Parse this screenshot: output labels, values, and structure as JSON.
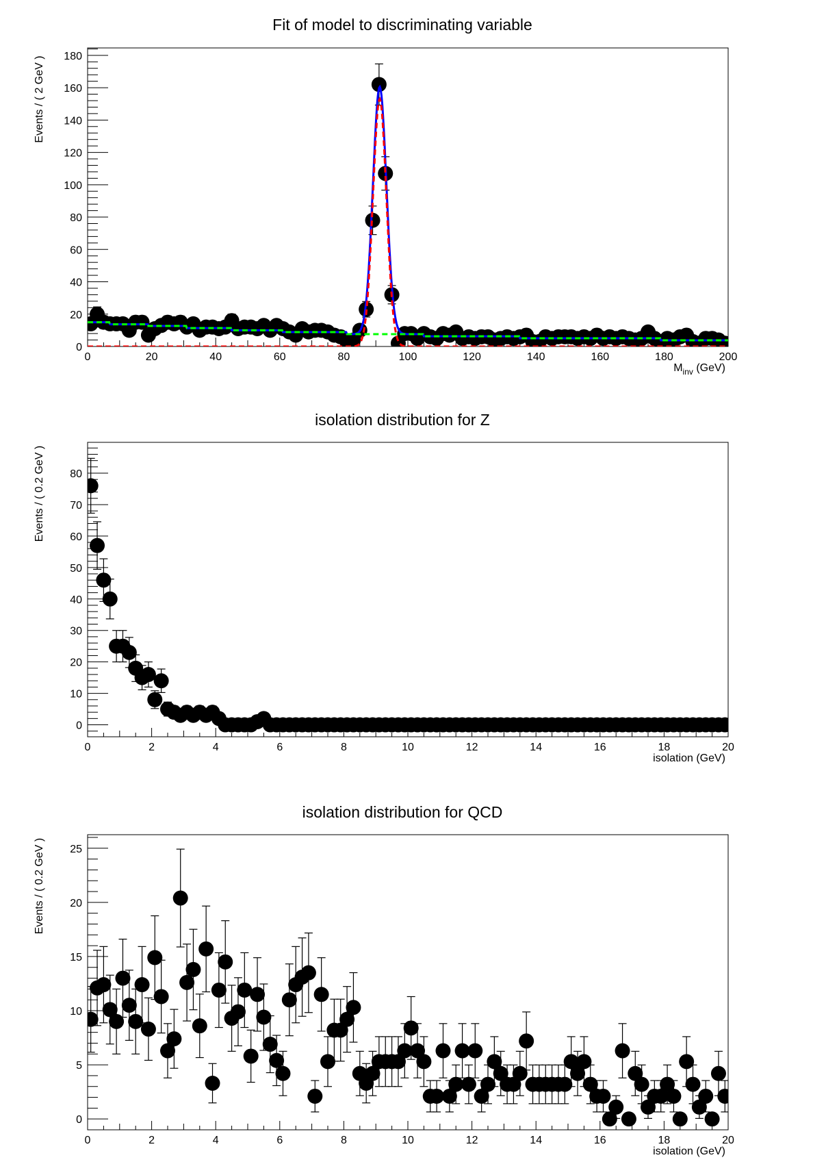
{
  "chart_data": [
    {
      "type": "scatter",
      "title": "Fit of model to discriminating variable",
      "xlabel": "M",
      "xlabel_sub": "inv",
      "xlabel_unit": " (GeV)",
      "ylabel": "Events / ( 2 GeV )",
      "xlim": [
        0,
        200
      ],
      "ylim": [
        0,
        184.6
      ],
      "xticks": [
        0,
        20,
        40,
        60,
        80,
        100,
        120,
        140,
        160,
        180,
        200
      ],
      "yticks": [
        0,
        20,
        40,
        60,
        80,
        100,
        120,
        140,
        160,
        180
      ],
      "grid": false,
      "bin_width": 2,
      "x": [
        1,
        3,
        5,
        7,
        9,
        11,
        13,
        15,
        17,
        19,
        21,
        23,
        25,
        27,
        29,
        31,
        33,
        35,
        37,
        39,
        41,
        43,
        45,
        47,
        49,
        51,
        53,
        55,
        57,
        59,
        61,
        63,
        65,
        67,
        69,
        71,
        73,
        75,
        77,
        79,
        81,
        83,
        85,
        87,
        89,
        91,
        93,
        95,
        97,
        99,
        101,
        103,
        105,
        107,
        109,
        111,
        113,
        115,
        117,
        119,
        121,
        123,
        125,
        127,
        129,
        131,
        133,
        135,
        137,
        139,
        141,
        143,
        145,
        147,
        149,
        151,
        153,
        155,
        157,
        159,
        161,
        163,
        165,
        167,
        169,
        171,
        173,
        175,
        177,
        179,
        181,
        183,
        185,
        187,
        189,
        191,
        193,
        195,
        197,
        199
      ],
      "values": [
        14,
        20,
        15,
        14,
        14,
        14,
        10,
        15,
        15,
        7,
        11,
        13,
        15,
        14,
        15,
        12,
        14,
        10,
        12,
        12,
        11,
        12,
        16,
        11,
        12,
        12,
        11,
        13,
        10,
        13,
        11,
        9,
        7,
        11,
        9,
        10,
        10,
        9,
        7,
        6,
        3,
        4,
        10,
        23,
        78,
        162,
        107,
        32,
        2,
        8,
        8,
        5,
        8,
        6,
        5,
        8,
        7,
        9,
        5,
        6,
        5,
        6,
        6,
        4,
        5,
        6,
        5,
        6,
        7,
        3,
        3,
        6,
        5,
        6,
        6,
        6,
        5,
        6,
        5,
        7,
        5,
        6,
        5,
        6,
        5,
        4,
        5,
        9,
        5,
        3,
        5,
        4,
        6,
        7,
        3,
        2,
        5,
        5,
        4,
        2
      ],
      "model": {
        "total_color": "#0000ff",
        "signal_color": "#ff0000",
        "background_color": "#00ff00",
        "signal": {
          "mean": 91.2,
          "sigma": 2.1,
          "peak": 153
        },
        "background_steps": [
          [
            0,
            15
          ],
          [
            7,
            13.7
          ],
          [
            19,
            12.7
          ],
          [
            31,
            11.4
          ],
          [
            45,
            10
          ],
          [
            61,
            8.9
          ],
          [
            81,
            7.6
          ],
          [
            105,
            6.3
          ],
          [
            135,
            5.1
          ],
          [
            179,
            3.8
          ]
        ]
      }
    },
    {
      "type": "scatter",
      "title": "isolation distribution for Z",
      "xlabel": "isolation (GeV)",
      "ylabel": "Events / ( 0.2 GeV )",
      "xlim": [
        0,
        20
      ],
      "ylim": [
        -3.8,
        89.8
      ],
      "xticks": [
        0,
        2,
        4,
        6,
        8,
        10,
        12,
        14,
        16,
        18,
        20
      ],
      "yticks": [
        0,
        10,
        20,
        30,
        40,
        50,
        60,
        70,
        80
      ],
      "grid": false,
      "bin_width": 0.2,
      "values": [
        76,
        57,
        46,
        40,
        25,
        25,
        23,
        18,
        15,
        16,
        8,
        14,
        5,
        4,
        3,
        4,
        3,
        4,
        3,
        4,
        2,
        0,
        0,
        0,
        0,
        0,
        1,
        2,
        0,
        0,
        0,
        0,
        0,
        0,
        0,
        0,
        0,
        0,
        0,
        0,
        0,
        0,
        0,
        0,
        0,
        0,
        0,
        0,
        0,
        0,
        0,
        0,
        0,
        0,
        0,
        0,
        0,
        0,
        0,
        0,
        0,
        0,
        0,
        0,
        0,
        0,
        0,
        0,
        0,
        0,
        0,
        0,
        0,
        0,
        0,
        0,
        0,
        0,
        0,
        0,
        0,
        0,
        0,
        0,
        0,
        0,
        0,
        0,
        0,
        0,
        0,
        0,
        0,
        0,
        0,
        0,
        0,
        0,
        0,
        0
      ]
    },
    {
      "type": "scatter",
      "title": "isolation distribution for QCD",
      "xlabel": "isolation (GeV)",
      "ylabel": "Events / ( 0.2 GeV )",
      "xlim": [
        0,
        20
      ],
      "ylim": [
        -1,
        26.25
      ],
      "xticks": [
        0,
        2,
        4,
        6,
        8,
        10,
        12,
        14,
        16,
        18,
        20
      ],
      "yticks": [
        0,
        5,
        10,
        15,
        20,
        25
      ],
      "grid": false,
      "bin_width": 0.2,
      "values": [
        9.2,
        12.1,
        12.4,
        10.1,
        9.0,
        13.0,
        10.5,
        9.0,
        12.4,
        8.3,
        14.9,
        11.3,
        6.3,
        7.4,
        20.4,
        12.6,
        13.8,
        8.6,
        15.7,
        3.3,
        11.9,
        14.5,
        9.3,
        9.9,
        11.9,
        5.8,
        11.5,
        9.4,
        6.9,
        5.4,
        4.2,
        11.0,
        12.4,
        13.1,
        13.5,
        2.1,
        11.5,
        5.3,
        8.2,
        8.2,
        9.2,
        10.3,
        4.2,
        3.3,
        4.2,
        5.3,
        5.3,
        5.3,
        5.3,
        6.3,
        8.4,
        6.3,
        5.3,
        2.1,
        2.1,
        6.3,
        2.1,
        3.2,
        6.3,
        3.2,
        6.3,
        2.1,
        3.2,
        5.3,
        4.2,
        3.2,
        3.2,
        4.2,
        7.2,
        3.2,
        3.2,
        3.2,
        3.2,
        3.2,
        3.2,
        5.3,
        4.2,
        5.3,
        3.2,
        2.1,
        2.1,
        0,
        1.1,
        6.3,
        0,
        4.2,
        3.2,
        1.1,
        2.1,
        2.1,
        3.2,
        2.1,
        0,
        5.3,
        3.2,
        1.1,
        2.1,
        0,
        4.2,
        2.1
      ]
    }
  ]
}
